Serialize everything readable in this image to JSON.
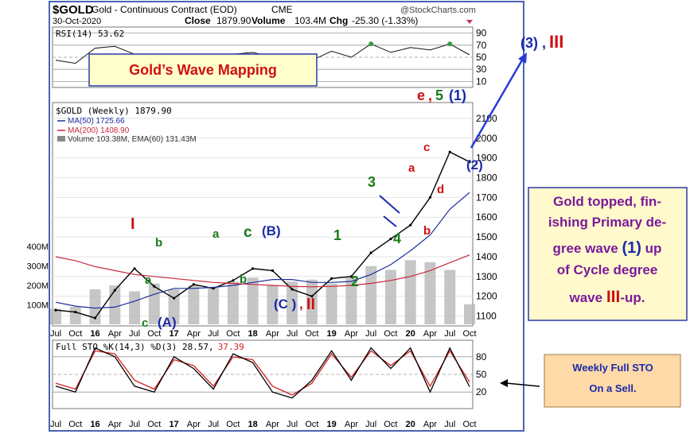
{
  "header": {
    "symbol": "$GOLD",
    "contract": "Gold - Continuous Contract (EOD)",
    "exchange": "CME",
    "watermark": "@StockCharts.com",
    "date": "30-Oct-2020",
    "close_label": "Close",
    "close_value": "1879.90",
    "volume_label": "Volume",
    "volume_value": "103.4M",
    "chg_label": "Chg",
    "chg_value": "-25.30 (-1.33%)"
  },
  "rsi_panel": {
    "label": "RSI(14) 53.62",
    "ticks": [
      "90",
      "70",
      "50",
      "30",
      "10"
    ]
  },
  "price_panel": {
    "legend_title": "$GOLD (Weekly) 1879.90",
    "ma50": "MA(50) 1725.66",
    "ma200": "MA(200) 1408.90",
    "volume": "Volume 103.38M, EMA(60) 131.43M",
    "price_ticks": [
      "2100",
      "2000",
      "1900",
      "1800",
      "1700",
      "1600",
      "1500",
      "1400",
      "1300",
      "1200",
      "1100"
    ],
    "volume_ticks": [
      "400M",
      "300M",
      "200M",
      "100M"
    ]
  },
  "sto_panel": {
    "label_main": "Full STO %K(14,3) %D(3) 28.57,",
    "label_d": "37.39",
    "ticks": [
      "80",
      "50",
      "20"
    ]
  },
  "x_axis": {
    "labels": [
      {
        "t": "Jul",
        "b": false
      },
      {
        "t": "Oct",
        "b": false
      },
      {
        "t": "16",
        "b": true
      },
      {
        "t": "Apr",
        "b": false
      },
      {
        "t": "Jul",
        "b": false
      },
      {
        "t": "Oct",
        "b": false
      },
      {
        "t": "17",
        "b": true
      },
      {
        "t": "Apr",
        "b": false
      },
      {
        "t": "Jul",
        "b": false
      },
      {
        "t": "Oct",
        "b": false
      },
      {
        "t": "18",
        "b": true
      },
      {
        "t": "Apr",
        "b": false
      },
      {
        "t": "Jul",
        "b": false
      },
      {
        "t": "Oct",
        "b": false
      },
      {
        "t": "19",
        "b": true
      },
      {
        "t": "Apr",
        "b": false
      },
      {
        "t": "Jul",
        "b": false
      },
      {
        "t": "Oct",
        "b": false
      },
      {
        "t": "20",
        "b": true
      },
      {
        "t": "Apr",
        "b": false
      },
      {
        "t": "Jul",
        "b": false
      },
      {
        "t": "Oct",
        "b": false
      }
    ]
  },
  "annotations": {
    "title_box": "Gold’s Wave Mapping",
    "right_box": {
      "l1": "Gold topped, fin-",
      "l2": "ishing Primary de-",
      "l3a": "gree  wave ",
      "l3b": "(1)",
      "l3c": " up",
      "l4": "of Cycle degree",
      "l5a": "wave ",
      "l5b": "III",
      "l5c": "-up."
    },
    "sto_box": {
      "l1": "Weekly Full STO",
      "l2": "On a Sell."
    },
    "waves": {
      "I": "I",
      "b1": "b",
      "a1": "a",
      "c_a": "c",
      "A": "(A)",
      "a2": "a",
      "b2": "b",
      "c2": "c",
      "B": "(B)",
      "C": "(C )",
      "II_comma": ",",
      "II": "II",
      "w1": "1",
      "w2": "2",
      "w3": "3",
      "w4": "4",
      "a3": "a",
      "b3": "b",
      "c3": "c",
      "d3": "d",
      "e": "e",
      "e_comma": ",",
      "w5": "5",
      "p1": "(1)",
      "p2": "(2)",
      "p3": "(3)",
      "p3_comma": ",",
      "III": "III"
    }
  },
  "colors": {
    "price": "#000000",
    "ma50": "#1f2f9c",
    "ma200": "#c8283c",
    "stoK": "#000000",
    "stoD": "#d42020",
    "wave_red": "#d01010",
    "wave_green": "#1a7a1a",
    "wave_blue": "#1a2aa8",
    "volume": "#b8b8b8",
    "rsi_fill": "#3a9a3a",
    "title_box_bg": "#ffffcc",
    "right_box_bg": "#fff9cc",
    "sto_box_bg": "#ffd9a8"
  },
  "chart_data": {
    "type": "line",
    "title": "$GOLD (Weekly)",
    "x": [
      "2015-07",
      "2015-10",
      "2016-01",
      "2016-04",
      "2016-07",
      "2016-10",
      "2017-01",
      "2017-04",
      "2017-07",
      "2017-10",
      "2018-01",
      "2018-04",
      "2018-07",
      "2018-10",
      "2019-01",
      "2019-04",
      "2019-07",
      "2019-10",
      "2020-01",
      "2020-04",
      "2020-07",
      "2020-10"
    ],
    "ylim": [
      1050,
      2180
    ],
    "series": [
      {
        "name": "$GOLD",
        "values": [
          1130,
          1120,
          1090,
          1230,
          1340,
          1250,
          1190,
          1260,
          1240,
          1280,
          1340,
          1330,
          1235,
          1200,
          1290,
          1300,
          1420,
          1490,
          1560,
          1700,
          1930,
          1880
        ]
      },
      {
        "name": "MA(50)",
        "values": [
          1170,
          1150,
          1140,
          1145,
          1175,
          1210,
          1240,
          1240,
          1245,
          1255,
          1270,
          1285,
          1285,
          1270,
          1270,
          1275,
          1310,
          1360,
          1430,
          1510,
          1640,
          1725
        ]
      },
      {
        "name": "MA(200)",
        "values": [
          1400,
          1380,
          1350,
          1330,
          1310,
          1300,
          1290,
          1280,
          1270,
          1265,
          1260,
          1255,
          1250,
          1248,
          1250,
          1255,
          1265,
          1280,
          1300,
          1330,
          1370,
          1409
        ]
      }
    ],
    "rsi": {
      "name": "RSI(14)",
      "ylim": [
        0,
        100
      ],
      "values": [
        45,
        40,
        65,
        68,
        55,
        42,
        54,
        52,
        48,
        55,
        58,
        50,
        38,
        45,
        60,
        50,
        72,
        58,
        66,
        62,
        72,
        54
      ]
    },
    "sto": {
      "ylim": [
        0,
        100
      ],
      "k": [
        30,
        20,
        95,
        80,
        30,
        20,
        80,
        60,
        25,
        85,
        70,
        20,
        10,
        40,
        90,
        40,
        95,
        60,
        95,
        20,
        95,
        29
      ],
      "d": [
        35,
        25,
        90,
        85,
        40,
        25,
        75,
        65,
        30,
        80,
        75,
        30,
        15,
        35,
        85,
        45,
        90,
        65,
        90,
        30,
        90,
        37
      ]
    },
    "volume_millions": [
      80,
      90,
      180,
      200,
      170,
      210,
      180,
      200,
      190,
      220,
      240,
      200,
      220,
      230,
      210,
      240,
      300,
      280,
      330,
      320,
      280,
      103
    ]
  }
}
